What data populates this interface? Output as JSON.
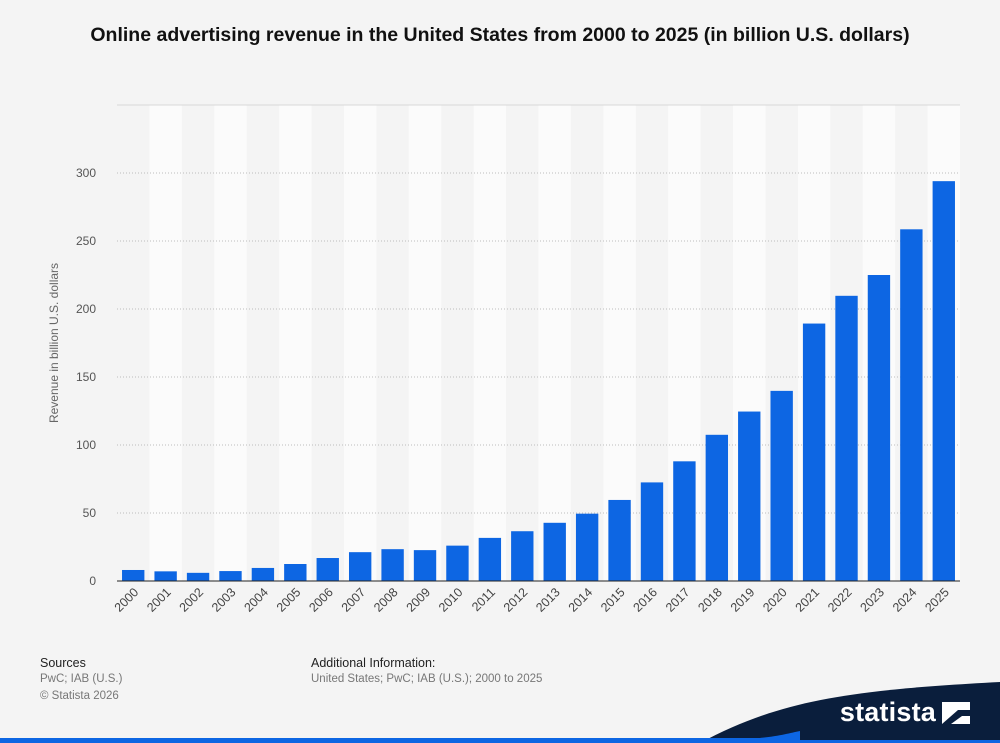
{
  "chart_data": {
    "type": "bar",
    "title": "Online advertising revenue in the United States from 2000 to 2025 (in billion U.S. dollars)",
    "xlabel": "",
    "ylabel": "Revenue in billion U.S. dollars",
    "ylim": [
      0,
      350
    ],
    "yticks": [
      0,
      50,
      100,
      150,
      200,
      250,
      300
    ],
    "grid": true,
    "bar_color": "#0d66e3",
    "categories": [
      "2000",
      "2001",
      "2002",
      "2003",
      "2004",
      "2005",
      "2006",
      "2007",
      "2008",
      "2009",
      "2010",
      "2011",
      "2012",
      "2013",
      "2014",
      "2015",
      "2016",
      "2017",
      "2018",
      "2019",
      "2020",
      "2021",
      "2022",
      "2023",
      "2024",
      "2025"
    ],
    "values": [
      8.1,
      7.1,
      6.0,
      7.3,
      9.6,
      12.5,
      16.9,
      21.2,
      23.4,
      22.7,
      26.0,
      31.7,
      36.6,
      42.8,
      49.5,
      59.6,
      72.5,
      88.0,
      107.5,
      124.6,
      139.8,
      189.3,
      209.7,
      225.0,
      258.6,
      294.0
    ]
  },
  "footer": {
    "sources_heading": "Sources",
    "sources_text": "PwC; IAB (U.S.)",
    "copyright": "© Statista 2026",
    "additional_heading": "Additional Information:",
    "additional_text": "United States; PwC; IAB (U.S.); 2000 to 2025"
  },
  "brand": {
    "name": "statista",
    "accent": "#0d66e3",
    "dark": "#0a1e3c",
    "logo_icon": "statista-flag-icon"
  }
}
